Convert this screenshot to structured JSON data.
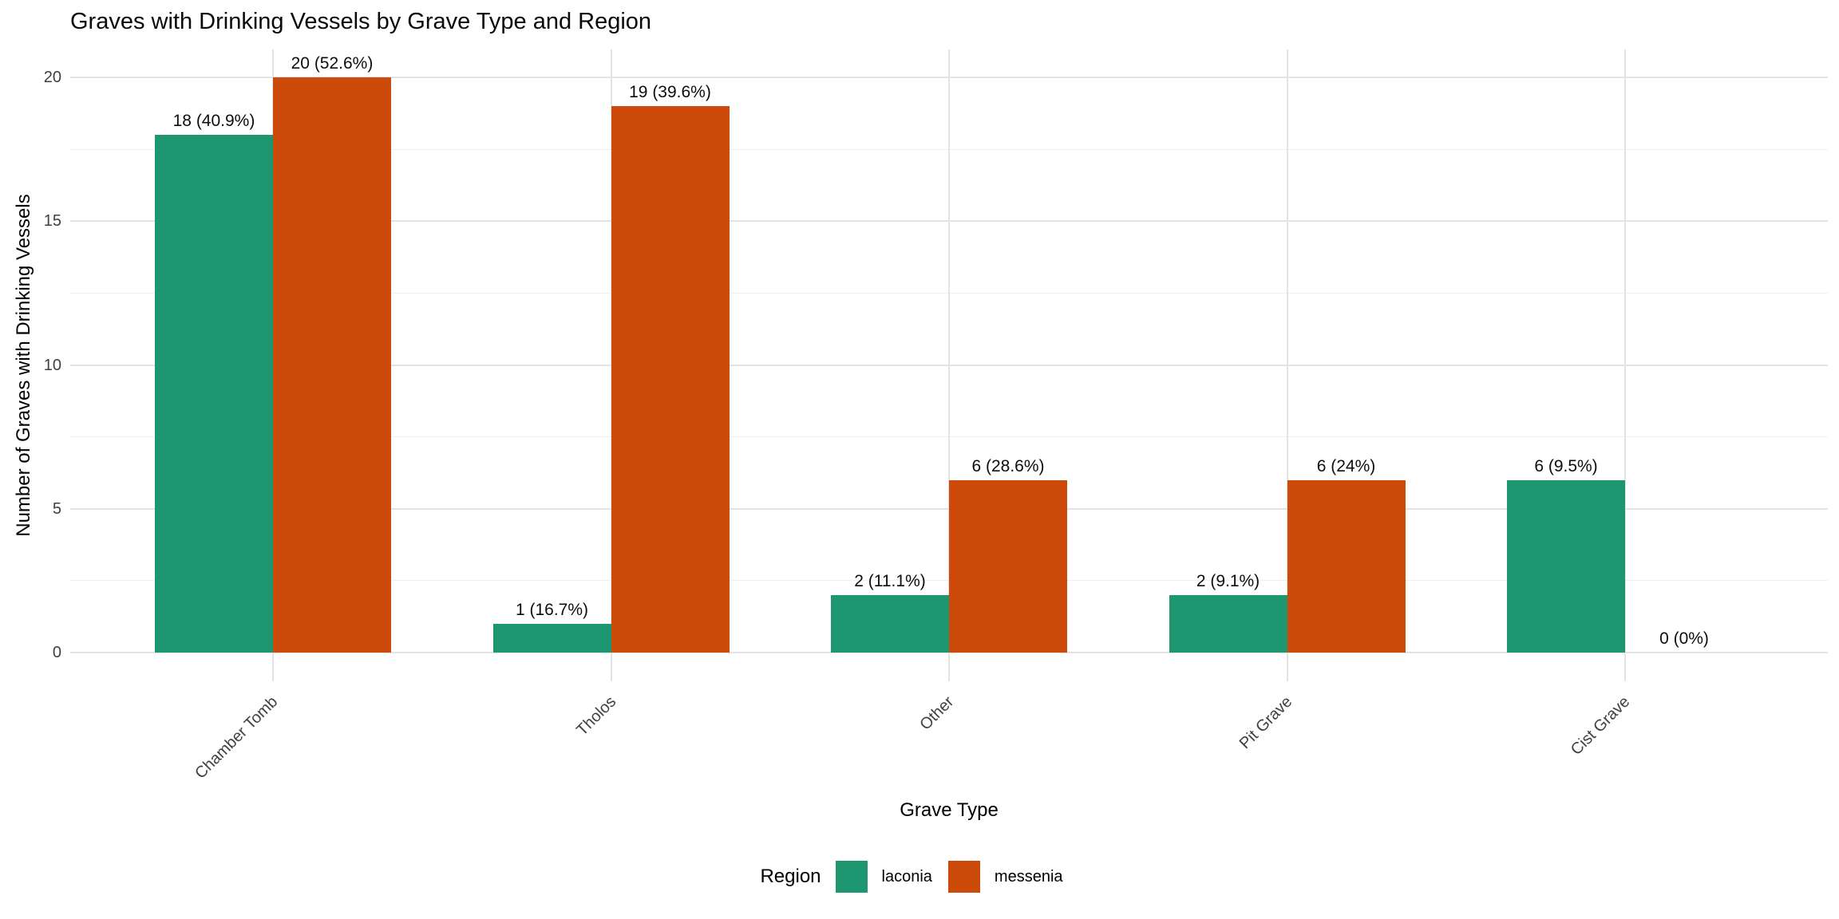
{
  "title": "Graves with Drinking Vessels by Grave Type and Region",
  "colors": {
    "laconia": "#1E9670",
    "messenia": "#CC4B0A",
    "grid_major": "#E3E3E3",
    "grid_minor": "#EFEFEF",
    "axis_text": "#404040",
    "title_text": "#0a0a0a"
  },
  "chart_data": {
    "type": "bar",
    "title": "Graves with Drinking Vessels by Grave Type and Region",
    "xlabel": "Grave Type",
    "ylabel": "Number of Graves with Drinking Vessels",
    "categories": [
      "Chamber Tomb",
      "Tholos",
      "Other",
      "Pit Grave",
      "Cist Grave"
    ],
    "series": [
      {
        "name": "laconia",
        "color": "#1E9670",
        "values": [
          18,
          1,
          2,
          2,
          6
        ],
        "labels": [
          "18 (40.9%)",
          "1 (16.7%)",
          "2 (11.1%)",
          "2 (9.1%)",
          "6 (9.5%)"
        ]
      },
      {
        "name": "messenia",
        "color": "#CC4B0A",
        "values": [
          20,
          19,
          6,
          6,
          0
        ],
        "labels": [
          "20 (52.6%)",
          "19 (39.6%)",
          "6 (28.6%)",
          "6 (24%)",
          "0 (0%)"
        ]
      }
    ],
    "y_ticks": [
      0,
      5,
      10,
      15,
      20
    ],
    "y_minor_ticks": [
      2.5,
      7.5,
      12.5,
      17.5
    ],
    "ylim": [
      0,
      20
    ],
    "grid": true,
    "legend_title": "Region",
    "legend_position": "bottom"
  }
}
